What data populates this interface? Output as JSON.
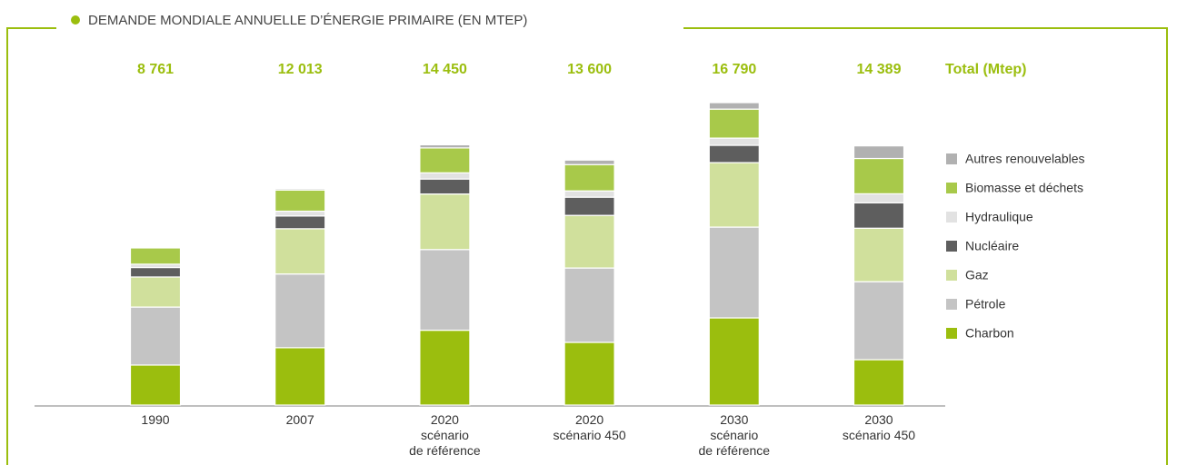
{
  "chart_data": {
    "type": "stacked-bar",
    "title": "DEMANDE MONDIALE ANNUELLE D’ÉNERGIE PRIMAIRE (EN MTEP)",
    "categories": [
      [
        "1990"
      ],
      [
        "2007"
      ],
      [
        "2020",
        "scénario",
        "de référence"
      ],
      [
        "2020",
        "scénario 450"
      ],
      [
        "2030",
        "scénario",
        "de référence"
      ],
      [
        "2030",
        "scénario 450"
      ]
    ],
    "series": [
      {
        "name": "Charbon",
        "color": "#9bbe0e",
        "values": [
          2221,
          3184,
          4154,
          3480,
          4840,
          2520
        ]
      },
      {
        "name": "Pétrole",
        "color": "#c4c4c4",
        "values": [
          3219,
          4093,
          4479,
          4130,
          5040,
          4329
        ]
      },
      {
        "name": "Gaz",
        "color": "#d0e09c",
        "values": [
          1671,
          2512,
          3085,
          2920,
          3580,
          2970
        ]
      },
      {
        "name": "Nucléaire",
        "color": "#5e5e5e",
        "values": [
          526,
          709,
          831,
          1010,
          960,
          1410
        ]
      },
      {
        "name": "Hydraulique",
        "color": "#e2e2e2",
        "values": [
          184,
          265,
          344,
          350,
          400,
          500
        ]
      },
      {
        "name": "Biomasse et déchets",
        "color": "#a8c94a",
        "values": [
          904,
          1176,
          1382,
          1460,
          1610,
          1960
        ]
      },
      {
        "name": "Autres renouvelables",
        "color": "#b1b1b1",
        "values": [
          36,
          74,
          175,
          250,
          360,
          700
        ]
      }
    ],
    "totals": {
      "name": "Total (Mtep)",
      "values": [
        8761,
        12013,
        14450,
        13600,
        16790,
        14389
      ],
      "value_labels": [
        "8 761",
        "12 013",
        "14 450",
        "13 600",
        "16 790",
        "14 389"
      ]
    }
  }
}
